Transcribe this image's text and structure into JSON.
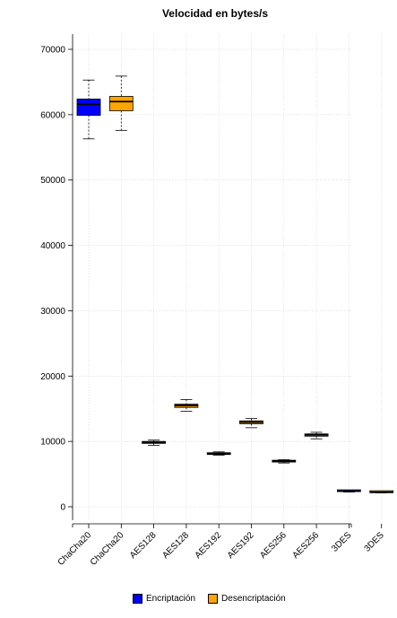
{
  "chart_data": {
    "type": "box",
    "title": "Velocidad en bytes/s",
    "xlabel": "",
    "ylabel": "",
    "ylim": [
      0,
      70000
    ],
    "yticks": [
      0,
      10000,
      20000,
      30000,
      40000,
      50000,
      60000,
      70000
    ],
    "categories": [
      "ChaCha20",
      "ChaCha20",
      "AES128",
      "AES128",
      "AES192",
      "AES192",
      "AES256",
      "AES256",
      "3DES",
      "3DES"
    ],
    "legend": [
      {
        "name": "Encriptación",
        "color": "#0000ff"
      },
      {
        "name": "Desencriptación",
        "color": "#ffa500"
      }
    ],
    "grid": true,
    "boxes": [
      {
        "category": "ChaCha20",
        "series": "Encriptación",
        "color": "#0000ff",
        "min": 56300,
        "q1": 59900,
        "median": 61600,
        "q3": 62400,
        "max": 65300
      },
      {
        "category": "ChaCha20",
        "series": "Desencriptación",
        "color": "#ffa500",
        "min": 57600,
        "q1": 60600,
        "median": 62000,
        "q3": 62800,
        "max": 65900
      },
      {
        "category": "AES128",
        "series": "Encriptación",
        "color": "#0000ff",
        "min": 9400,
        "q1": 9700,
        "median": 9850,
        "q3": 10000,
        "max": 10200
      },
      {
        "category": "AES128",
        "series": "Desencriptación",
        "color": "#ffa500",
        "min": 14600,
        "q1": 15200,
        "median": 15500,
        "q3": 15700,
        "max": 16400
      },
      {
        "category": "AES192",
        "series": "Encriptación",
        "color": "#0000ff",
        "min": 7900,
        "q1": 8000,
        "median": 8100,
        "q3": 8200,
        "max": 8400
      },
      {
        "category": "AES192",
        "series": "Desencriptación",
        "color": "#ffa500",
        "min": 12100,
        "q1": 12700,
        "median": 12950,
        "q3": 13150,
        "max": 13500
      },
      {
        "category": "AES256",
        "series": "Encriptación",
        "color": "#0000ff",
        "min": 6700,
        "q1": 6850,
        "median": 6950,
        "q3": 7050,
        "max": 7200
      },
      {
        "category": "AES256",
        "series": "Desencriptación",
        "color": "#ffa500",
        "min": 10400,
        "q1": 10800,
        "median": 11000,
        "q3": 11150,
        "max": 11400
      },
      {
        "category": "3DES",
        "series": "Encriptación",
        "color": "#0000ff",
        "min": 2250,
        "q1": 2320,
        "median": 2380,
        "q3": 2430,
        "max": 2480
      },
      {
        "category": "3DES",
        "series": "Desencriptación",
        "color": "#ffa500",
        "min": 2120,
        "q1": 2180,
        "median": 2220,
        "q3": 2270,
        "max": 2310
      }
    ]
  }
}
